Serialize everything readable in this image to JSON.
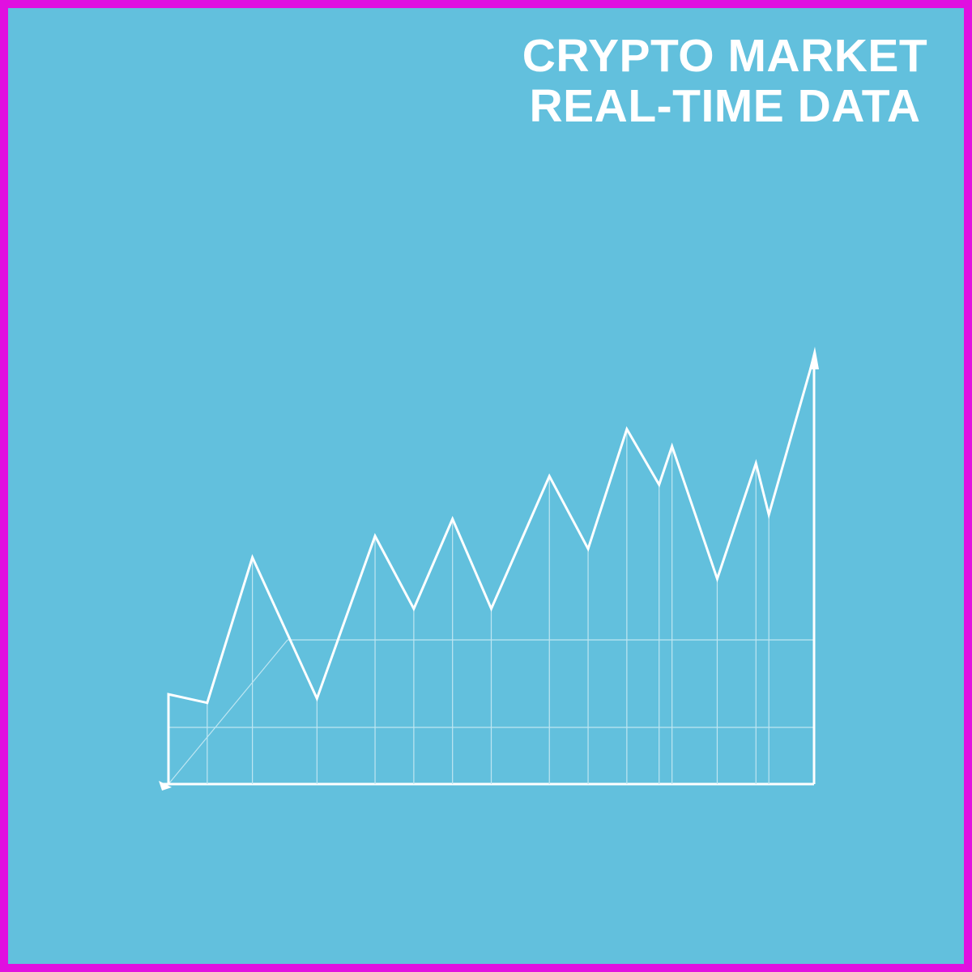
{
  "chart_data": {
    "type": "line",
    "title": "CRYPTO MARKET REAL-TIME DATA",
    "x": [
      0,
      6,
      13,
      23,
      32,
      38,
      44,
      50,
      59,
      65,
      71,
      76,
      78,
      85,
      91,
      93,
      100
    ],
    "series": [
      {
        "color": "#ffffff",
        "values": [
          21,
          19,
          53,
          20,
          58,
          41,
          62,
          41,
          72,
          55,
          83,
          70,
          79,
          48,
          75,
          63,
          100
        ]
      }
    ],
    "xlim": [
      0,
      100
    ],
    "ylim": [
      0,
      100
    ]
  }
}
